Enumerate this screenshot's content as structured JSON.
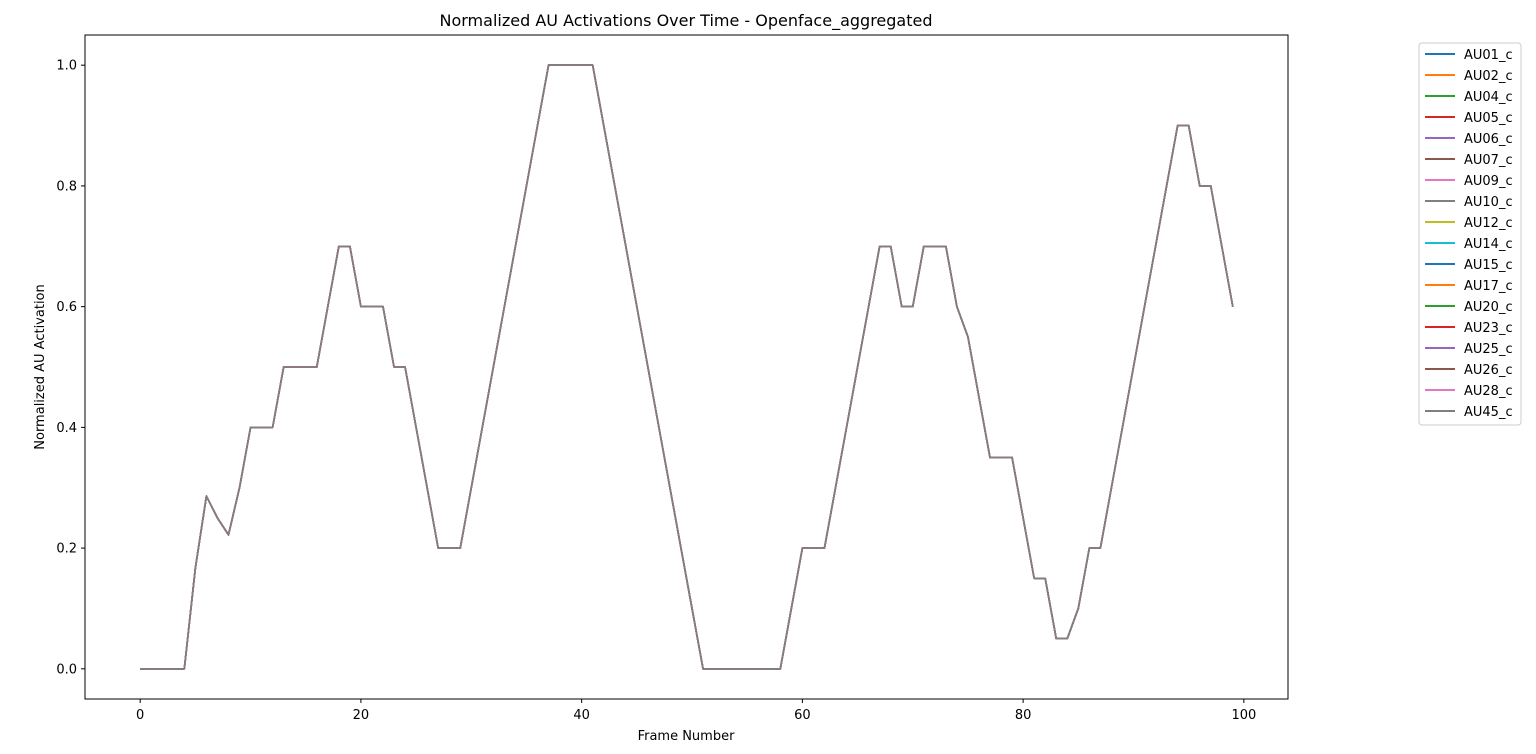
{
  "chart_data": {
    "type": "line",
    "title": "Normalized AU Activations Over Time - Openface_aggregated",
    "xlabel": "Frame Number",
    "ylabel": "Normalized AU Activation",
    "xlim": [
      -5,
      104
    ],
    "ylim": [
      -0.05,
      1.05
    ],
    "xticks": [
      0,
      20,
      40,
      60,
      80,
      100
    ],
    "yticks": [
      "0.0",
      "0.2",
      "0.4",
      "0.6",
      "0.8",
      "1.0"
    ],
    "grid": false,
    "legend_position": "outside-right",
    "x": [
      0,
      1,
      2,
      3,
      4,
      5,
      6,
      7,
      8,
      9,
      10,
      11,
      12,
      13,
      14,
      15,
      16,
      17,
      18,
      19,
      20,
      21,
      22,
      23,
      24,
      25,
      26,
      27,
      28,
      29,
      30,
      31,
      32,
      33,
      34,
      35,
      36,
      37,
      38,
      39,
      40,
      41,
      42,
      43,
      44,
      45,
      46,
      47,
      48,
      49,
      50,
      51,
      52,
      53,
      54,
      55,
      56,
      57,
      58,
      59,
      60,
      61,
      62,
      63,
      64,
      65,
      66,
      67,
      68,
      69,
      70,
      71,
      72,
      73,
      74,
      75,
      76,
      77,
      78,
      79,
      80,
      81,
      82,
      83,
      84,
      85,
      86,
      87,
      88,
      89,
      90,
      91,
      92,
      93,
      94,
      95,
      96,
      97,
      98,
      99
    ],
    "visible_values": [
      0,
      0,
      0,
      0,
      0,
      0.167,
      0.286,
      0.25,
      0.222,
      0.3,
      0.4,
      0.4,
      0.4,
      0.5,
      0.5,
      0.5,
      0.5,
      0.6,
      0.7,
      0.7,
      0.6,
      0.6,
      0.6,
      0.5,
      0.5,
      0.4,
      0.3,
      0.2,
      0.2,
      0.2,
      0.3,
      0.4,
      0.5,
      0.6,
      0.7,
      0.8,
      0.9,
      1.0,
      1.0,
      1.0,
      1.0,
      1.0,
      0.9,
      0.8,
      0.7,
      0.6,
      0.5,
      0.4,
      0.3,
      0.2,
      0.1,
      0,
      0,
      0,
      0,
      0,
      0,
      0,
      0,
      0.1,
      0.2,
      0.2,
      0.2,
      0.3,
      0.4,
      0.5,
      0.6,
      0.7,
      0.7,
      0.6,
      0.6,
      0.7,
      0.7,
      0.7,
      0.6,
      0.55,
      0.45,
      0.35,
      0.35,
      0.35,
      0.25,
      0.15,
      0.15,
      0.05,
      0.05,
      0.1,
      0.2,
      0.2,
      0.3,
      0.4,
      0.5,
      0.6,
      0.7,
      0.8,
      0.9,
      0.9,
      0.8,
      0.8,
      0.7,
      0.6
    ],
    "series": [
      {
        "name": "AU01_c",
        "color": "#1f77b4"
      },
      {
        "name": "AU02_c",
        "color": "#ff7f0e"
      },
      {
        "name": "AU04_c",
        "color": "#2ca02c"
      },
      {
        "name": "AU05_c",
        "color": "#d62728"
      },
      {
        "name": "AU06_c",
        "color": "#9467bd"
      },
      {
        "name": "AU07_c",
        "color": "#8c564b"
      },
      {
        "name": "AU09_c",
        "color": "#e377c2"
      },
      {
        "name": "AU10_c",
        "color": "#7f7f7f"
      },
      {
        "name": "AU12_c",
        "color": "#bcbd22"
      },
      {
        "name": "AU14_c",
        "color": "#17becf"
      },
      {
        "name": "AU15_c",
        "color": "#1f77b4"
      },
      {
        "name": "AU17_c",
        "color": "#ff7f0e"
      },
      {
        "name": "AU20_c",
        "color": "#2ca02c"
      },
      {
        "name": "AU23_c",
        "color": "#d62728"
      },
      {
        "name": "AU25_c",
        "color": "#9467bd"
      },
      {
        "name": "AU26_c",
        "color": "#8c564b"
      },
      {
        "name": "AU28_c",
        "color": "#e377c2"
      },
      {
        "name": "AU45_c",
        "color": "#7f7f7f"
      }
    ]
  }
}
